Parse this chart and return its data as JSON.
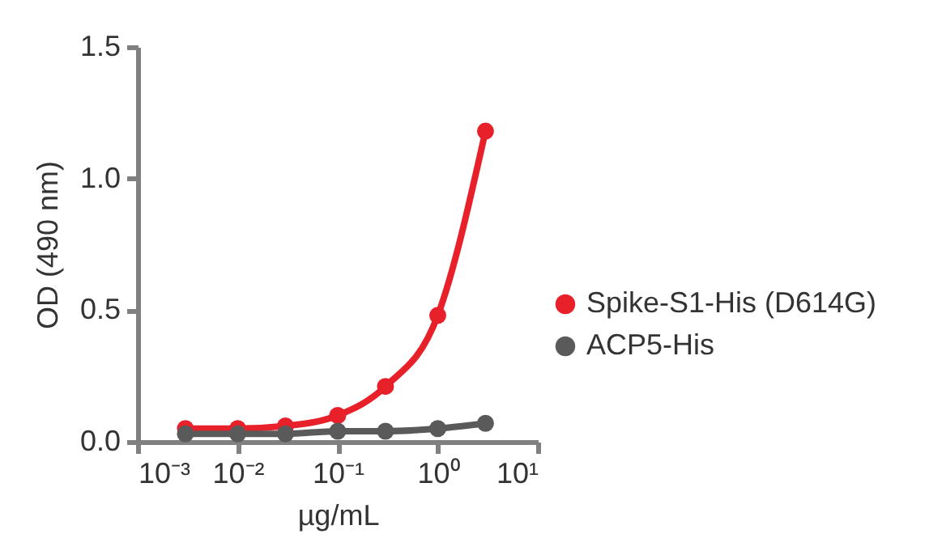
{
  "chart_data": {
    "type": "line",
    "xlabel": "µg/mL",
    "ylabel": "OD (490 nm)",
    "x": [
      0.003,
      0.01,
      0.03,
      0.1,
      0.3,
      1,
      3
    ],
    "series": [
      {
        "name": "Spike-S1-His (D614G)",
        "color": "#e8202a",
        "values": [
          0.05,
          0.05,
          0.06,
          0.1,
          0.21,
          0.48,
          1.18
        ]
      },
      {
        "name": "ACP5-His",
        "color": "#5a5a5a",
        "values": [
          0.03,
          0.03,
          0.03,
          0.04,
          0.04,
          0.05,
          0.07
        ]
      }
    ],
    "log": "x",
    "xlim": [
      0.001,
      10
    ],
    "xticks": [
      {
        "value": 0.001,
        "label": "10⁻³"
      },
      {
        "value": 0.01,
        "label": "10⁻²"
      },
      {
        "value": 0.1,
        "label": "10⁻¹"
      },
      {
        "value": 1,
        "label": "10⁰"
      },
      {
        "value": 10,
        "label": "10¹"
      }
    ],
    "ylim": [
      0,
      1.5
    ],
    "yticks": [
      {
        "value": 0,
        "label": "0.0"
      },
      {
        "value": 0.5,
        "label": "0.5"
      },
      {
        "value": 1,
        "label": "1.0"
      },
      {
        "value": 1.5,
        "label": "1.5"
      }
    ],
    "grid": false,
    "legend": "right",
    "marker": "circle",
    "line_style": "solid"
  }
}
